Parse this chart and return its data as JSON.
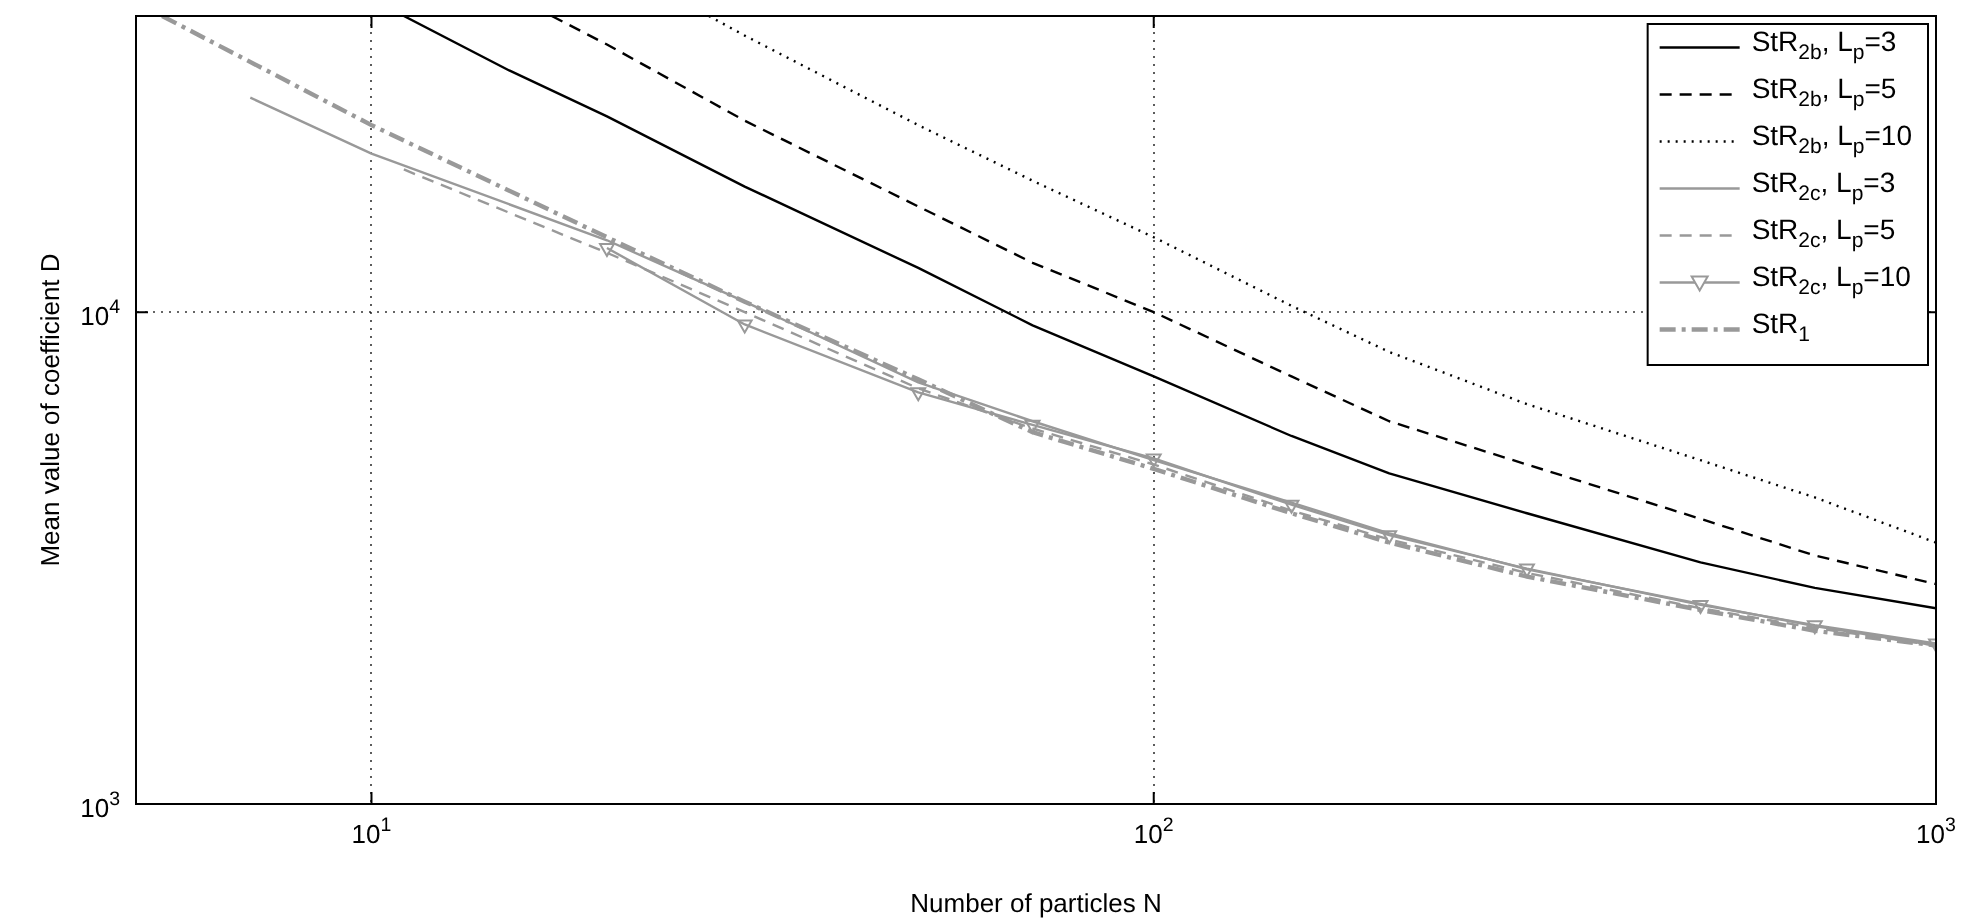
{
  "chart_data": {
    "type": "line",
    "xlabel": "Number of particles N",
    "ylabel": "Mean value of coefficient D",
    "log": "xy",
    "grid": true,
    "legend": "top right",
    "xlim": [
      5,
      1000
    ],
    "xticks": [
      {
        "value": 10,
        "label": "10$^{1}$"
      },
      {
        "value": 100,
        "label": "10$^{2}$"
      },
      {
        "value": 1000,
        "label": "10$^{3}$"
      }
    ],
    "ylim": [
      1000,
      40000
    ],
    "yticks": [
      {
        "value": 1000,
        "label": "10$^{3}$"
      },
      {
        "value": 10000,
        "label": "10$^{4}$"
      }
    ],
    "series": [
      {
        "name": "StR$_{2b}$, L$_{p}$=3",
        "color": "#000000",
        "line_style": "solid",
        "marker": "none",
        "x": [
          11,
          15,
          20,
          30,
          50,
          70,
          100,
          150,
          200,
          300,
          500,
          700,
          1000
        ],
        "values": [
          40000,
          31000,
          25000,
          18000,
          12300,
          9400,
          7400,
          5600,
          4700,
          3900,
          3100,
          2750,
          2500
        ]
      },
      {
        "name": "StR$_{2b}$, L$_{p}$=5",
        "color": "#000000",
        "line_style": "dashed",
        "marker": "none",
        "x": [
          17,
          20,
          30,
          50,
          70,
          100,
          150,
          200,
          300,
          500,
          700,
          1000
        ],
        "values": [
          40000,
          35000,
          24500,
          16400,
          12600,
          10000,
          7400,
          6000,
          4900,
          3800,
          3200,
          2800
        ]
      },
      {
        "name": "StR$_{2b}$, L$_{p}$=10",
        "color": "#000000",
        "line_style": "dotted",
        "marker": "none",
        "x": [
          27,
          30,
          50,
          70,
          100,
          150,
          200,
          300,
          500,
          700,
          1000
        ],
        "values": [
          40000,
          36500,
          24000,
          18500,
          14200,
          10300,
          8300,
          6500,
          5000,
          4200,
          3400
        ]
      },
      {
        "name": "StR$_{2c}$, L$_{p}$=3",
        "color": "#999999",
        "line_style": "solid",
        "marker": "none",
        "x": [
          7,
          10,
          20,
          30,
          50,
          70,
          100,
          150,
          200,
          300,
          500,
          700,
          1000
        ],
        "values": [
          27300,
          21000,
          14000,
          10500,
          7200,
          6000,
          5000,
          4100,
          3550,
          3000,
          2550,
          2300,
          2100
        ]
      },
      {
        "name": "StR$_{2c}$, L$_{p}$=5",
        "color": "#999999",
        "line_style": "dashed",
        "marker": "none",
        "x": [
          11,
          20,
          30,
          50,
          70,
          100,
          150,
          200,
          300,
          500,
          700,
          1000
        ],
        "values": [
          19500,
          13200,
          10000,
          7000,
          5800,
          4900,
          3950,
          3450,
          2950,
          2500,
          2280,
          2100
        ]
      },
      {
        "name": "StR$_{2c}$, L$_{p}$=10",
        "color": "#999999",
        "line_style": "solid",
        "marker": "triangle",
        "x": [
          20,
          30,
          50,
          70,
          100,
          150,
          200,
          300,
          500,
          700,
          1000
        ],
        "values": [
          13500,
          9440,
          6870,
          5900,
          5040,
          4060,
          3520,
          3010,
          2540,
          2310,
          2120
        ]
      },
      {
        "name": "StR$_{1}$",
        "color": "#999999",
        "line_style": "dashdot",
        "marker": "none",
        "x": [
          5.4,
          10,
          20,
          30,
          50,
          70,
          100,
          150,
          200,
          300,
          500,
          700,
          1000
        ],
        "values": [
          40000,
          24000,
          14200,
          10500,
          7300,
          5700,
          4800,
          3900,
          3400,
          2900,
          2480,
          2250,
          2100
        ]
      }
    ]
  }
}
